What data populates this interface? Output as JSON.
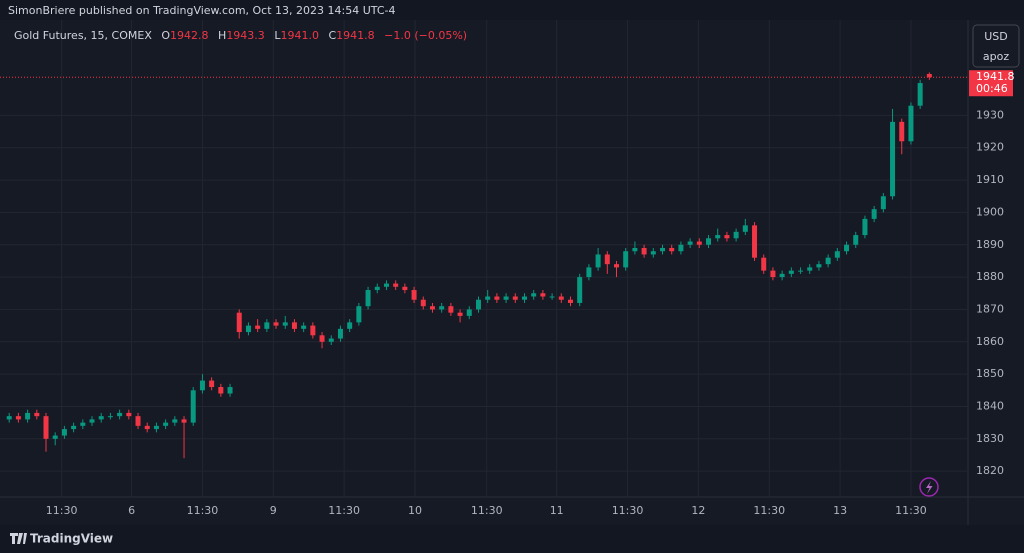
{
  "header": {
    "published": "SimonBriere published on TradingView.com, Oct 13, 2023 14:54 UTC-4",
    "symbol": "Gold Futures, 15, COMEX",
    "o_label": "O",
    "o": "1942.8",
    "h_label": "H",
    "h": "1943.3",
    "l_label": "L",
    "l": "1941.0",
    "c_label": "C",
    "c": "1941.8",
    "change": "−1.0 (−0.05%)"
  },
  "currency": "USD",
  "unit": "apoz",
  "countdown": "00:46",
  "brand": "TradingView",
  "chart_data": {
    "type": "candlestick",
    "up_color": "#089981",
    "down_color": "#f23645",
    "grid": true,
    "xlim": [
      -1,
      104.2
    ],
    "ylim": [
      1812,
      1959.5
    ],
    "yticks": [
      1820,
      1830,
      1840,
      1850,
      1860,
      1870,
      1880,
      1890,
      1900,
      1910,
      1920,
      1930
    ],
    "xticks": [
      {
        "value": 5.7,
        "label": "11:30"
      },
      {
        "value": 13.3,
        "label": "6"
      },
      {
        "value": 21,
        "label": "11:30"
      },
      {
        "value": 28.7,
        "label": "9"
      },
      {
        "value": 36.4,
        "label": "11:30"
      },
      {
        "value": 44.1,
        "label": "10"
      },
      {
        "value": 51.9,
        "label": "11:30"
      },
      {
        "value": 59.5,
        "label": "11"
      },
      {
        "value": 67.2,
        "label": "11:30"
      },
      {
        "value": 74.9,
        "label": "12"
      },
      {
        "value": 82.6,
        "label": "11:30"
      },
      {
        "value": 90.3,
        "label": "13"
      },
      {
        "value": 98,
        "label": "11:30"
      }
    ],
    "ohlc": [
      [
        1836,
        1838,
        1835,
        1837
      ],
      [
        1837,
        1838,
        1835,
        1836
      ],
      [
        1836,
        1839,
        1835,
        1838
      ],
      [
        1838,
        1839,
        1836,
        1837
      ],
      [
        1837,
        1838,
        1826,
        1830
      ],
      [
        1830,
        1832,
        1828,
        1831
      ],
      [
        1831,
        1834,
        1830,
        1833
      ],
      [
        1833,
        1835,
        1832,
        1834
      ],
      [
        1834,
        1836,
        1833,
        1835
      ],
      [
        1835,
        1837,
        1834,
        1836
      ],
      [
        1836,
        1838,
        1835,
        1837
      ],
      [
        1837,
        1838,
        1836,
        1837
      ],
      [
        1837,
        1839,
        1836,
        1838
      ],
      [
        1838,
        1839,
        1836,
        1837
      ],
      [
        1837,
        1838,
        1833,
        1834
      ],
      [
        1834,
        1835,
        1832,
        1833
      ],
      [
        1833,
        1835,
        1832,
        1834
      ],
      [
        1834,
        1836,
        1833,
        1835
      ],
      [
        1835,
        1837,
        1834,
        1836
      ],
      [
        1836,
        1837,
        1824,
        1835
      ],
      [
        1835,
        1846,
        1834,
        1845
      ],
      [
        1845,
        1850,
        1844,
        1848
      ],
      [
        1848,
        1849,
        1845,
        1846
      ],
      [
        1846,
        1847,
        1843,
        1844
      ],
      [
        1844,
        1847,
        1843,
        1846
      ],
      [
        1869,
        1870,
        1861,
        1863
      ],
      [
        1863,
        1866,
        1862,
        1865
      ],
      [
        1865,
        1867,
        1863,
        1864
      ],
      [
        1864,
        1867,
        1863,
        1866
      ],
      [
        1866,
        1867,
        1864,
        1865
      ],
      [
        1865,
        1868,
        1864,
        1866
      ],
      [
        1866,
        1867,
        1863,
        1864
      ],
      [
        1864,
        1866,
        1863,
        1865
      ],
      [
        1865,
        1866,
        1861,
        1862
      ],
      [
        1862,
        1863,
        1858,
        1860
      ],
      [
        1860,
        1862,
        1859,
        1861
      ],
      [
        1861,
        1865,
        1860,
        1864
      ],
      [
        1864,
        1867,
        1863,
        1866
      ],
      [
        1866,
        1872,
        1865,
        1871
      ],
      [
        1871,
        1877,
        1870,
        1876
      ],
      [
        1876,
        1878,
        1875,
        1877
      ],
      [
        1877,
        1879,
        1876,
        1878
      ],
      [
        1878,
        1879,
        1876,
        1877
      ],
      [
        1877,
        1878,
        1875,
        1876
      ],
      [
        1876,
        1877,
        1872,
        1873
      ],
      [
        1873,
        1874,
        1870,
        1871
      ],
      [
        1871,
        1872,
        1869,
        1870
      ],
      [
        1870,
        1872,
        1869,
        1871
      ],
      [
        1871,
        1872,
        1868,
        1869
      ],
      [
        1869,
        1870,
        1866,
        1868
      ],
      [
        1868,
        1871,
        1867,
        1870
      ],
      [
        1870,
        1874,
        1869,
        1873
      ],
      [
        1873,
        1876,
        1872,
        1874
      ],
      [
        1874,
        1875,
        1872,
        1873
      ],
      [
        1873,
        1875,
        1872,
        1874
      ],
      [
        1874,
        1875,
        1872,
        1873
      ],
      [
        1873,
        1875,
        1872,
        1874
      ],
      [
        1874,
        1876,
        1873,
        1875
      ],
      [
        1875,
        1876,
        1873,
        1874
      ],
      [
        1874,
        1875,
        1873,
        1874
      ],
      [
        1874,
        1875,
        1872,
        1873
      ],
      [
        1873,
        1874,
        1871,
        1872
      ],
      [
        1872,
        1881,
        1871,
        1880
      ],
      [
        1880,
        1884,
        1879,
        1883
      ],
      [
        1883,
        1889,
        1882,
        1887
      ],
      [
        1887,
        1888,
        1881,
        1884
      ],
      [
        1884,
        1885,
        1880,
        1883
      ],
      [
        1883,
        1889,
        1882,
        1888
      ],
      [
        1888,
        1891,
        1887,
        1889
      ],
      [
        1889,
        1890,
        1886,
        1887
      ],
      [
        1887,
        1889,
        1886,
        1888
      ],
      [
        1888,
        1890,
        1887,
        1889
      ],
      [
        1889,
        1890,
        1887,
        1888
      ],
      [
        1888,
        1891,
        1887,
        1890
      ],
      [
        1890,
        1892,
        1889,
        1891
      ],
      [
        1891,
        1892,
        1889,
        1890
      ],
      [
        1890,
        1893,
        1889,
        1892
      ],
      [
        1892,
        1895,
        1891,
        1893
      ],
      [
        1893,
        1894,
        1891,
        1892
      ],
      [
        1892,
        1895,
        1891,
        1894
      ],
      [
        1894,
        1898,
        1893,
        1896
      ],
      [
        1896,
        1897,
        1885,
        1886
      ],
      [
        1886,
        1887,
        1881,
        1882
      ],
      [
        1882,
        1883,
        1879,
        1880
      ],
      [
        1880,
        1882,
        1879,
        1881
      ],
      [
        1881,
        1883,
        1880,
        1882
      ],
      [
        1882,
        1883,
        1881,
        1882
      ],
      [
        1882,
        1884,
        1881,
        1883
      ],
      [
        1883,
        1885,
        1882,
        1884
      ],
      [
        1884,
        1887,
        1883,
        1886
      ],
      [
        1886,
        1889,
        1885,
        1888
      ],
      [
        1888,
        1891,
        1887,
        1890
      ],
      [
        1890,
        1894,
        1889,
        1893
      ],
      [
        1893,
        1899,
        1892,
        1898
      ],
      [
        1898,
        1902,
        1897,
        1901
      ],
      [
        1901,
        1906,
        1900,
        1905
      ],
      [
        1905,
        1932,
        1904,
        1928
      ],
      [
        1928,
        1929,
        1918,
        1922
      ],
      [
        1922,
        1934,
        1921,
        1933
      ],
      [
        1933,
        1941,
        1932,
        1940
      ],
      [
        1942.8,
        1943.3,
        1941.0,
        1941.8
      ]
    ]
  }
}
